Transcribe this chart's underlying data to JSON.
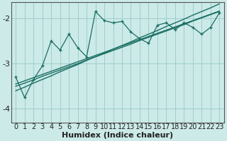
{
  "title": "",
  "xlabel": "Humidex (Indice chaleur)",
  "ylabel": "",
  "bg_color": "#cceae8",
  "grid_color": "#9dcfcc",
  "line_color": "#1a6e63",
  "x_data": [
    0,
    1,
    2,
    3,
    4,
    5,
    6,
    7,
    8,
    9,
    10,
    11,
    12,
    13,
    14,
    15,
    16,
    17,
    18,
    19,
    20,
    21,
    22,
    23
  ],
  "y_main": [
    -3.3,
    -3.75,
    -3.35,
    -3.05,
    -2.5,
    -2.7,
    -2.35,
    -2.65,
    -2.85,
    -1.85,
    -2.05,
    -2.1,
    -2.07,
    -2.3,
    -2.45,
    -2.55,
    -2.15,
    -2.1,
    -2.25,
    -2.1,
    -2.2,
    -2.35,
    -2.2,
    -1.88
  ],
  "y_reg1": [
    -3.45,
    -3.38,
    -3.31,
    -3.24,
    -3.17,
    -3.1,
    -3.03,
    -2.96,
    -2.89,
    -2.82,
    -2.75,
    -2.68,
    -2.61,
    -2.54,
    -2.47,
    -2.4,
    -2.33,
    -2.26,
    -2.19,
    -2.12,
    -2.05,
    -1.98,
    -1.91,
    -1.84
  ],
  "y_reg2": [
    -3.5,
    -3.43,
    -3.36,
    -3.28,
    -3.21,
    -3.14,
    -3.07,
    -3.0,
    -2.92,
    -2.85,
    -2.78,
    -2.71,
    -2.64,
    -2.57,
    -2.49,
    -2.42,
    -2.35,
    -2.28,
    -2.21,
    -2.14,
    -2.06,
    -1.99,
    -1.92,
    -1.85
  ],
  "y_reg3": [
    -3.6,
    -3.52,
    -3.43,
    -3.35,
    -3.27,
    -3.18,
    -3.1,
    -3.02,
    -2.93,
    -2.85,
    -2.77,
    -2.68,
    -2.6,
    -2.52,
    -2.43,
    -2.35,
    -2.27,
    -2.18,
    -2.1,
    -2.02,
    -1.93,
    -1.85,
    -1.77,
    -1.68
  ],
  "ylim": [
    -4.3,
    -1.65
  ],
  "xlim": [
    -0.5,
    23.5
  ],
  "yticks": [
    -4,
    -3,
    -2
  ],
  "xticks": [
    0,
    1,
    2,
    3,
    4,
    5,
    6,
    7,
    8,
    9,
    10,
    11,
    12,
    13,
    14,
    15,
    16,
    17,
    18,
    19,
    20,
    21,
    22,
    23
  ],
  "xlabel_fontsize": 8,
  "tick_fontsize": 7
}
